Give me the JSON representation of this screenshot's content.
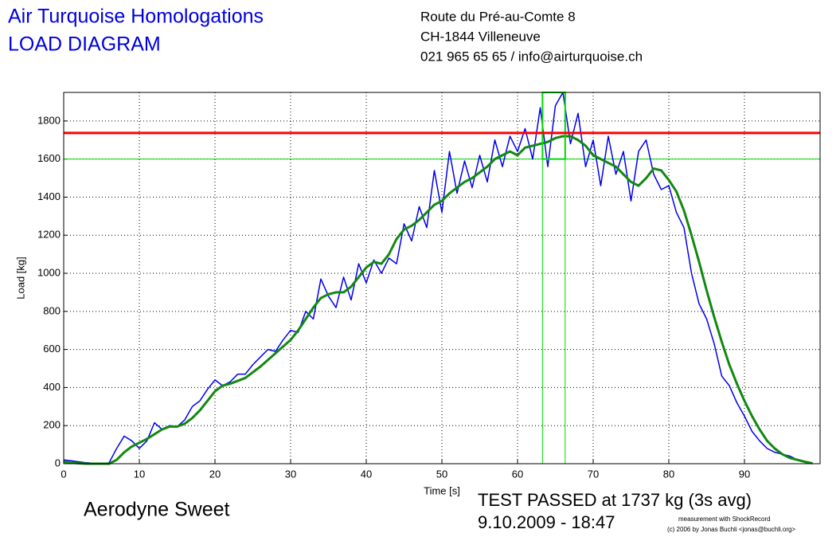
{
  "header": {
    "title": "Air Turquoise Homologations",
    "subtitle": "LOAD DIAGRAM",
    "address": [
      "Route du Pré-au-Comte 8",
      "CH-1844 Villeneuve",
      "021 965 65 65 / info@airturquoise.ch"
    ]
  },
  "chart_data": {
    "type": "line",
    "x_label": "Time [s]",
    "y_label": "Load [kg]",
    "xlim": [
      0,
      100
    ],
    "ylim": [
      0,
      1950
    ],
    "xticks": [
      0,
      10,
      20,
      30,
      40,
      50,
      60,
      70,
      80,
      90
    ],
    "yticks": [
      0,
      200,
      400,
      600,
      800,
      1000,
      1200,
      1400,
      1600,
      1800
    ],
    "grid": true,
    "pass_load": 1737,
    "pass_color": "#ff0000",
    "threshold": 1600,
    "avg_window": [
      63.3,
      66.3
    ],
    "window_color": "#00dd00",
    "x": [
      0,
      1,
      2,
      3,
      4,
      5,
      6,
      7,
      8,
      9,
      10,
      11,
      12,
      13,
      14,
      15,
      16,
      17,
      18,
      19,
      20,
      21,
      22,
      23,
      24,
      25,
      26,
      27,
      28,
      29,
      30,
      31,
      32,
      33,
      34,
      35,
      36,
      37,
      38,
      39,
      40,
      41,
      42,
      43,
      44,
      45,
      46,
      47,
      48,
      49,
      50,
      51,
      52,
      53,
      54,
      55,
      56,
      57,
      58,
      59,
      60,
      61,
      62,
      63,
      64,
      65,
      66,
      67,
      68,
      69,
      70,
      71,
      72,
      73,
      74,
      75,
      76,
      77,
      78,
      79,
      80,
      81,
      82,
      83,
      84,
      85,
      86,
      87,
      88,
      89,
      90,
      91,
      92,
      93,
      94,
      95,
      96,
      97,
      98,
      99
    ],
    "series": [
      {
        "color": "#0000ee",
        "width": 1.5,
        "values": [
          20,
          15,
          10,
          5,
          2,
          0,
          5,
          80,
          145,
          120,
          80,
          120,
          215,
          180,
          200,
          195,
          230,
          300,
          330,
          390,
          440,
          410,
          430,
          470,
          470,
          520,
          560,
          600,
          590,
          650,
          700,
          690,
          800,
          760,
          970,
          880,
          820,
          980,
          860,
          1050,
          950,
          1070,
          1000,
          1080,
          1050,
          1260,
          1170,
          1350,
          1240,
          1540,
          1320,
          1640,
          1420,
          1590,
          1450,
          1620,
          1480,
          1700,
          1560,
          1720,
          1640,
          1760,
          1600,
          1870,
          1560,
          1880,
          1950,
          1680,
          1840,
          1560,
          1700,
          1460,
          1720,
          1520,
          1640,
          1380,
          1640,
          1700,
          1520,
          1440,
          1460,
          1320,
          1240,
          1000,
          840,
          760,
          630,
          460,
          410,
          320,
          250,
          170,
          120,
          80,
          60,
          50,
          40,
          20,
          10,
          2
        ]
      },
      {
        "color": "#118811",
        "width": 3,
        "values": [
          10,
          5,
          2,
          0,
          0,
          0,
          0,
          20,
          60,
          90,
          110,
          130,
          155,
          180,
          195,
          195,
          210,
          240,
          280,
          330,
          380,
          410,
          420,
          435,
          450,
          480,
          510,
          545,
          580,
          615,
          650,
          700,
          760,
          820,
          870,
          890,
          900,
          900,
          930,
          980,
          1030,
          1060,
          1050,
          1100,
          1180,
          1230,
          1250,
          1280,
          1320,
          1360,
          1380,
          1420,
          1450,
          1480,
          1500,
          1530,
          1560,
          1600,
          1620,
          1640,
          1620,
          1660,
          1670,
          1680,
          1690,
          1710,
          1720,
          1720,
          1700,
          1670,
          1620,
          1600,
          1580,
          1560,
          1520,
          1480,
          1460,
          1500,
          1550,
          1540,
          1490,
          1430,
          1330,
          1200,
          1060,
          910,
          770,
          640,
          520,
          420,
          330,
          250,
          180,
          120,
          80,
          50,
          30,
          20,
          10,
          2
        ]
      }
    ]
  },
  "footer": {
    "subject": "Aerodyne Sweet",
    "result": "TEST PASSED at 1737 kg (3s avg)",
    "date": "9.10.2009 - 18:47",
    "credit1": "measurement with ShockRecord",
    "credit2": "(c) 2006 by Jonas Buchli <jonas@buchli.org>"
  }
}
